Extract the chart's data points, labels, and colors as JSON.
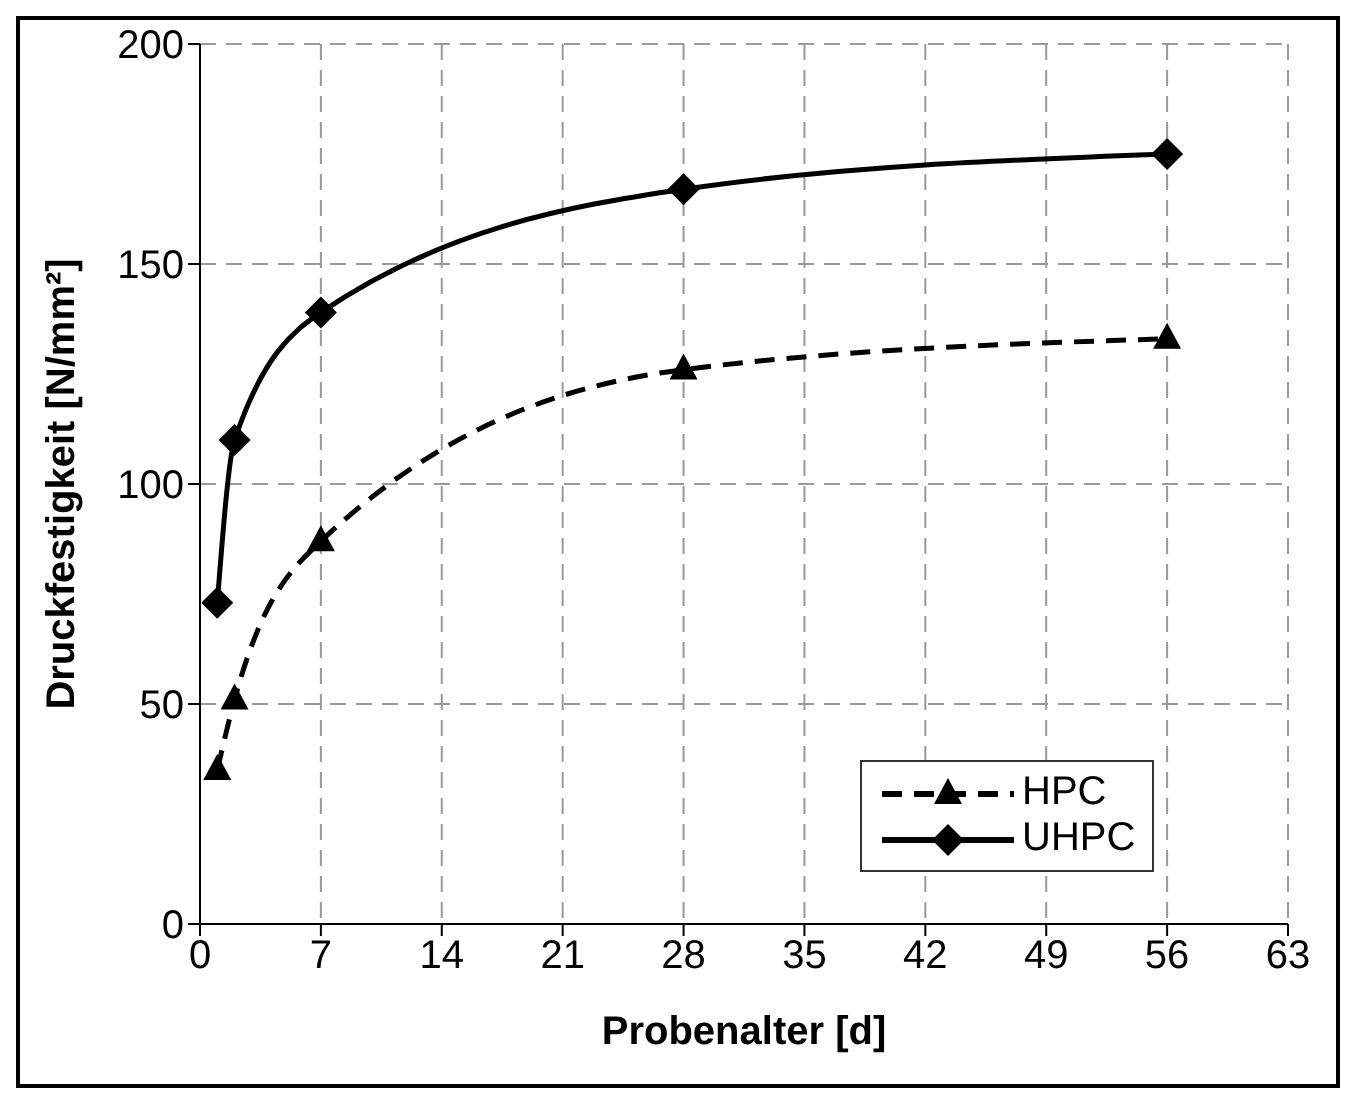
{
  "chart_data": {
    "type": "line",
    "xlabel": "Probenalter [d]",
    "ylabel": "Druckfestigkeit [N/mm²]",
    "xlim": [
      0,
      63
    ],
    "xticks": [
      0,
      7,
      14,
      21,
      28,
      35,
      42,
      49,
      56,
      63
    ],
    "ylim": [
      0,
      200
    ],
    "yticks": [
      0,
      50,
      100,
      150,
      200
    ],
    "grid": true,
    "legend": "bottom right",
    "x": [
      1,
      2,
      7,
      28,
      56
    ],
    "series": [
      {
        "name": "HPC",
        "color": "#000000",
        "values": [
          35,
          51,
          87,
          126,
          133
        ],
        "marker": "triangle",
        "line_style": "dashed"
      },
      {
        "name": "UHPC",
        "color": "#000000",
        "values": [
          73,
          110,
          139,
          167,
          175
        ],
        "marker": "diamond",
        "line_style": "solid"
      }
    ]
  }
}
